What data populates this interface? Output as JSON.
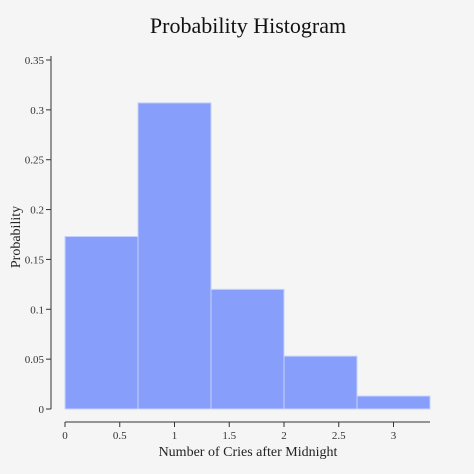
{
  "chart_data": {
    "type": "bar",
    "title": "Probability Histogram",
    "xlabel": "Number of Cries after Midnight",
    "ylabel": "Probability",
    "bins": [
      {
        "x0": 0.0,
        "x1": 0.6667,
        "value": 0.173
      },
      {
        "x0": 0.6667,
        "x1": 1.3333,
        "value": 0.307
      },
      {
        "x0": 1.3333,
        "x1": 2.0,
        "value": 0.12
      },
      {
        "x0": 2.0,
        "x1": 2.6667,
        "value": 0.053
      },
      {
        "x0": 2.6667,
        "x1": 3.3333,
        "value": 0.013
      }
    ],
    "xlim": [
      0,
      3.3333
    ],
    "ylim": [
      0,
      0.35
    ],
    "x_ticks": [
      {
        "value": 0,
        "label": "0"
      },
      {
        "value": 0.5,
        "label": "0.5"
      },
      {
        "value": 1,
        "label": "1"
      },
      {
        "value": 1.5,
        "label": "1.5"
      },
      {
        "value": 2,
        "label": "2"
      },
      {
        "value": 2.5,
        "label": "2.5"
      },
      {
        "value": 3,
        "label": "3"
      }
    ],
    "y_ticks": [
      {
        "value": 0,
        "label": "0"
      },
      {
        "value": 0.05,
        "label": "0.05"
      },
      {
        "value": 0.1,
        "label": "0.1"
      },
      {
        "value": 0.15,
        "label": "0.15"
      },
      {
        "value": 0.2,
        "label": "0.2"
      },
      {
        "value": 0.25,
        "label": "0.25"
      },
      {
        "value": 0.3,
        "label": "0.3"
      },
      {
        "value": 0.35,
        "label": "0.35"
      }
    ],
    "grid": false,
    "colors": {
      "bar_fill": "#879ffb",
      "bar_stroke": "#c7d2fd",
      "axis": "#333333",
      "background": "#f5f5f5"
    }
  }
}
